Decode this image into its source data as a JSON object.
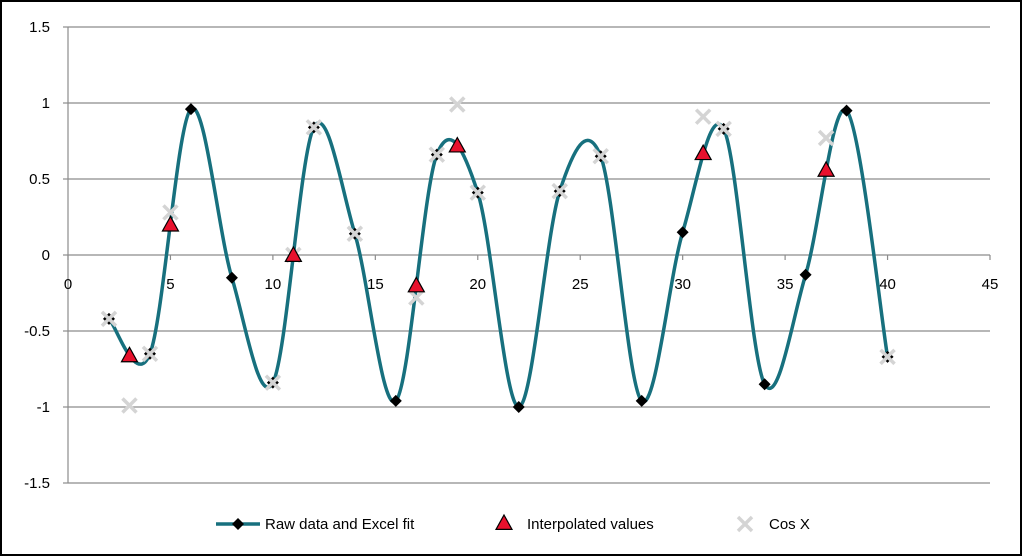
{
  "chart_data": {
    "type": "scatter",
    "title": "",
    "xlabel": "",
    "ylabel": "",
    "xlim": [
      0,
      45
    ],
    "ylim": [
      -1.5,
      1.5
    ],
    "x_ticks": [
      0,
      5,
      10,
      15,
      20,
      25,
      30,
      35,
      40,
      45
    ],
    "y_ticks": [
      -1.5,
      -1,
      -0.5,
      0,
      0.5,
      1,
      1.5
    ],
    "grid": "horizontal",
    "legend_position": "bottom",
    "colors": {
      "fit": "#17707e",
      "marker_raw": "#000000",
      "interp": "#e8112d",
      "cos": "#d4d4d4",
      "grid": "#8c8c8c"
    },
    "series": [
      {
        "name": "Raw data and Excel fit",
        "style": "smooth-line-with-diamonds",
        "x": [
          2,
          4,
          6,
          8,
          10,
          12,
          14,
          16,
          18,
          20,
          22,
          24,
          26,
          28,
          30,
          32,
          34,
          36,
          38,
          40
        ],
        "y": [
          -0.42,
          -0.65,
          0.96,
          -0.15,
          -0.84,
          0.84,
          0.14,
          -0.96,
          0.66,
          0.41,
          -1.0,
          0.42,
          0.65,
          -0.96,
          0.15,
          0.83,
          -0.85,
          -0.13,
          0.95,
          -0.67
        ]
      },
      {
        "name": "Interpolated values",
        "style": "triangles",
        "x": [
          3,
          5,
          11,
          17,
          19,
          31,
          37
        ],
        "y": [
          -0.66,
          0.2,
          0.0,
          -0.2,
          0.72,
          0.67,
          0.56
        ]
      },
      {
        "name": "Cos X",
        "style": "crosses",
        "x": [
          2,
          3,
          4,
          5,
          10,
          11,
          12,
          14,
          17,
          18,
          19,
          20,
          24,
          26,
          31,
          32,
          37,
          40
        ],
        "y": [
          -0.42,
          -0.99,
          -0.65,
          0.28,
          -0.84,
          0.0,
          0.84,
          0.14,
          -0.28,
          0.66,
          0.99,
          0.41,
          0.42,
          0.65,
          0.91,
          0.83,
          0.77,
          -0.67
        ]
      }
    ]
  }
}
